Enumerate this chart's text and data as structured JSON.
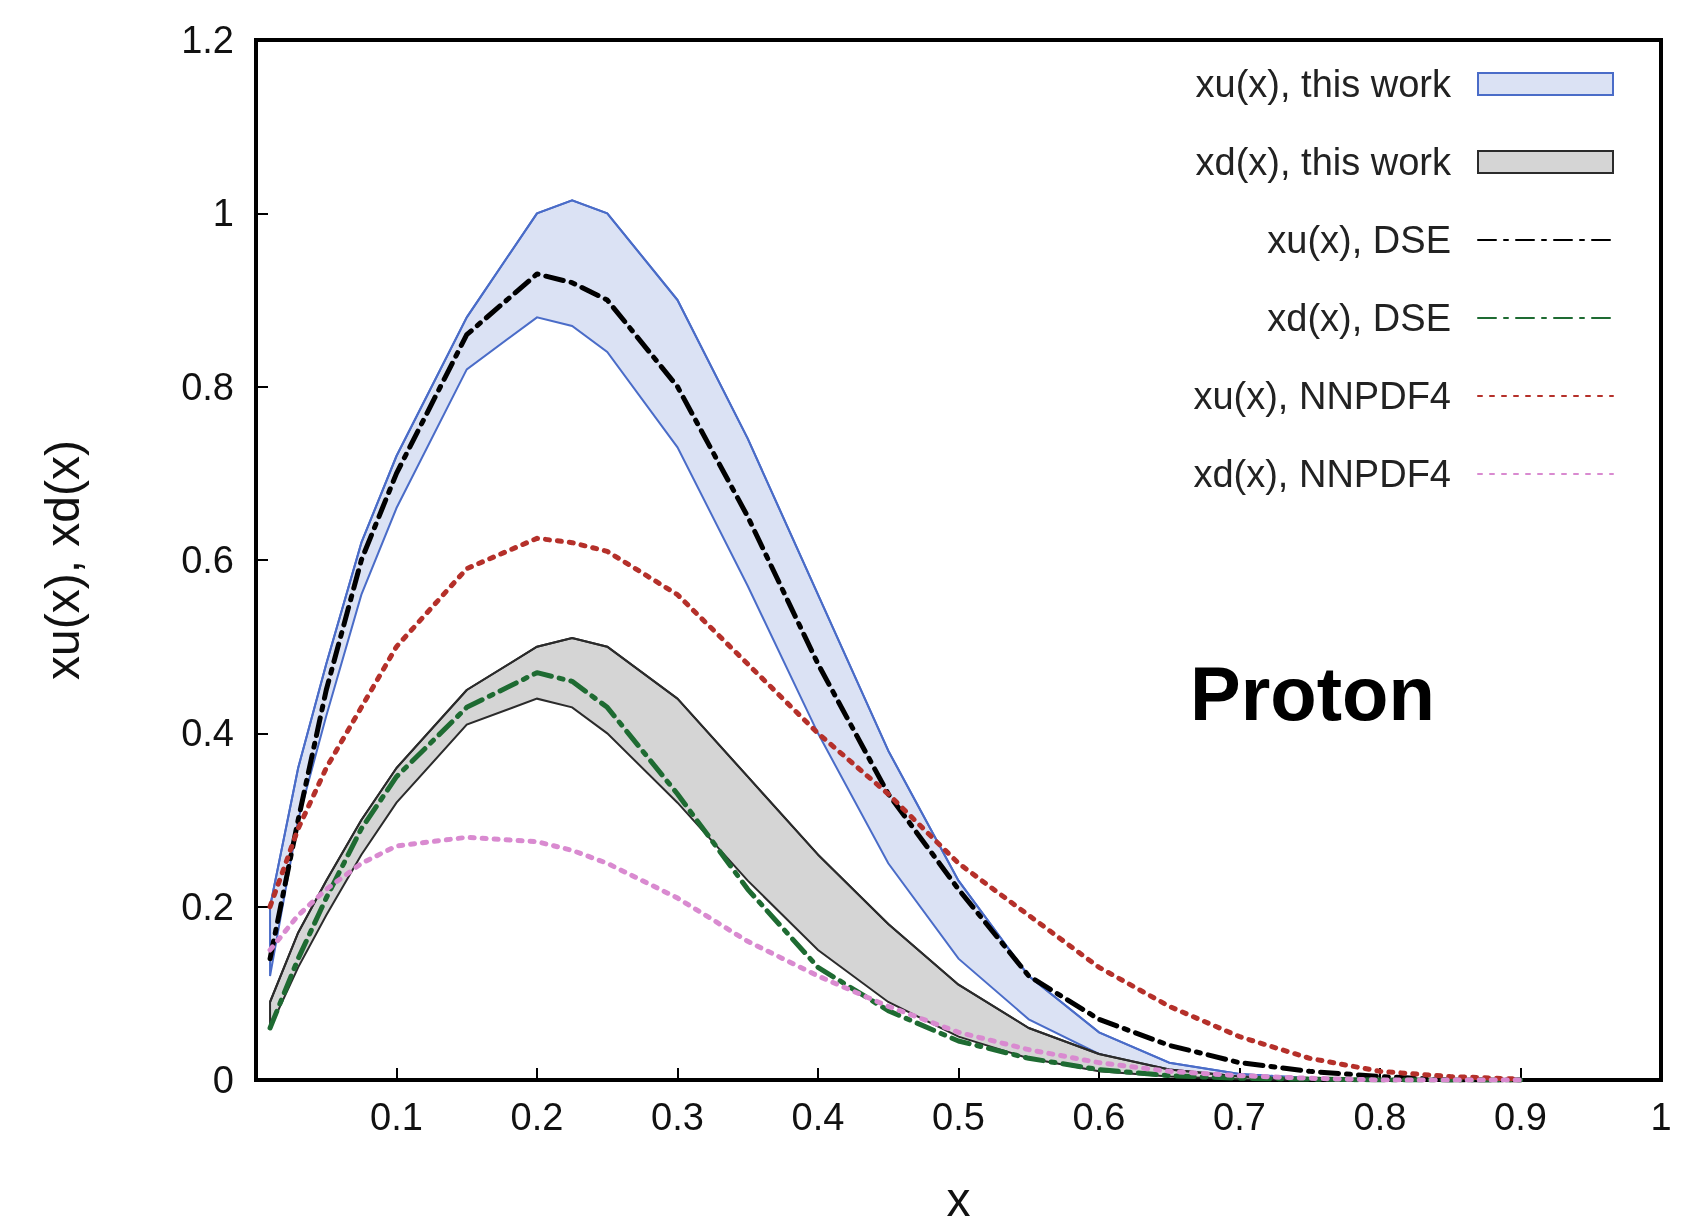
{
  "chart_data": {
    "type": "line",
    "xlabel": "x",
    "ylabel": "xu(x), xd(x)",
    "annotations": [
      "Proton"
    ],
    "x": [
      0.01,
      0.03,
      0.05,
      0.075,
      0.1,
      0.15,
      0.2,
      0.225,
      0.25,
      0.3,
      0.35,
      0.4,
      0.45,
      0.5,
      0.55,
      0.6,
      0.65,
      0.7,
      0.75,
      0.8,
      0.85,
      0.9
    ],
    "xlim": [
      0,
      1
    ],
    "xticks": [
      0.1,
      0.2,
      0.3,
      0.4,
      0.5,
      0.6,
      0.7,
      0.8,
      0.9,
      1
    ],
    "ylim": [
      0,
      1.2
    ],
    "yticks": [
      0,
      0.2,
      0.4,
      0.6,
      0.8,
      1,
      1.2
    ],
    "legend": "top right",
    "grid": false,
    "series": [
      {
        "name": "xu(x), this work",
        "color": "#4a6cc8",
        "values": [
          0.2,
          0.36,
          0.48,
          0.62,
          0.72,
          0.88,
          1,
          1.015,
          1,
          0.9,
          0.74,
          0.56,
          0.38,
          0.23,
          0.12,
          0.055,
          0.02,
          0.007,
          0.002,
          0,
          null,
          null
        ],
        "lower": [
          0.12,
          0.3,
          0.42,
          0.56,
          0.66,
          0.82,
          0.88,
          0.87,
          0.84,
          0.73,
          0.57,
          0.4,
          0.25,
          0.14,
          0.07,
          0.03,
          0.01,
          0.003,
          0.001,
          0,
          null,
          null
        ],
        "upper": [
          0.2,
          0.36,
          0.48,
          0.62,
          0.72,
          0.88,
          1,
          1.015,
          1,
          0.9,
          0.74,
          0.56,
          0.38,
          0.23,
          0.12,
          0.055,
          0.02,
          0.007,
          0.002,
          0,
          null,
          null
        ]
      },
      {
        "name": "xd(x), this work",
        "color": "#2b2b2b",
        "values": [
          0.09,
          0.17,
          0.23,
          0.3,
          0.36,
          0.45,
          0.5,
          0.51,
          0.5,
          0.44,
          0.35,
          0.26,
          0.18,
          0.11,
          0.06,
          0.03,
          0.012,
          0.004,
          0.001,
          0,
          0,
          0
        ],
        "lower": [
          0.06,
          0.13,
          0.19,
          0.26,
          0.32,
          0.41,
          0.44,
          0.43,
          0.4,
          0.32,
          0.23,
          0.15,
          0.09,
          0.05,
          0.025,
          0.01,
          0.004,
          0.001,
          0,
          0,
          0,
          0
        ],
        "upper": [
          0.09,
          0.17,
          0.23,
          0.3,
          0.36,
          0.45,
          0.5,
          0.51,
          0.5,
          0.44,
          0.35,
          0.26,
          0.18,
          0.11,
          0.06,
          0.03,
          0.012,
          0.004,
          0.001,
          0,
          0,
          0
        ]
      },
      {
        "name": "xu(x), DSE",
        "color": "#000000",
        "line_style": "dashed",
        "values": [
          0.14,
          0.3,
          0.45,
          0.6,
          0.7,
          0.86,
          0.93,
          0.92,
          0.9,
          0.8,
          0.65,
          0.48,
          0.33,
          0.22,
          0.12,
          0.07,
          0.04,
          0.02,
          0.01,
          0.004,
          0,
          0
        ]
      },
      {
        "name": "xd(x), DSE",
        "color": "#1e6b32",
        "line_style": "dashed",
        "values": [
          0.06,
          0.14,
          0.21,
          0.29,
          0.35,
          0.43,
          0.47,
          0.46,
          0.43,
          0.33,
          0.22,
          0.13,
          0.08,
          0.045,
          0.025,
          0.012,
          0.005,
          0.002,
          0.001,
          0,
          0,
          0
        ]
      },
      {
        "name": "xu(x), NNPDF4",
        "color": "#b5302a",
        "line_style": "dotted",
        "values": [
          0.2,
          0.29,
          0.36,
          0.43,
          0.5,
          0.59,
          0.625,
          0.62,
          0.61,
          0.56,
          0.48,
          0.4,
          0.33,
          0.25,
          0.19,
          0.13,
          0.085,
          0.05,
          0.025,
          0.01,
          0.004,
          0.001
        ]
      },
      {
        "name": "xd(x), NNPDF4",
        "color": "#d98ad0",
        "line_style": "dotted",
        "values": [
          0.15,
          0.19,
          0.22,
          0.25,
          0.27,
          0.28,
          0.275,
          0.265,
          0.25,
          0.21,
          0.16,
          0.12,
          0.085,
          0.055,
          0.035,
          0.02,
          0.01,
          0.005,
          0.002,
          0,
          0,
          0
        ]
      }
    ]
  }
}
